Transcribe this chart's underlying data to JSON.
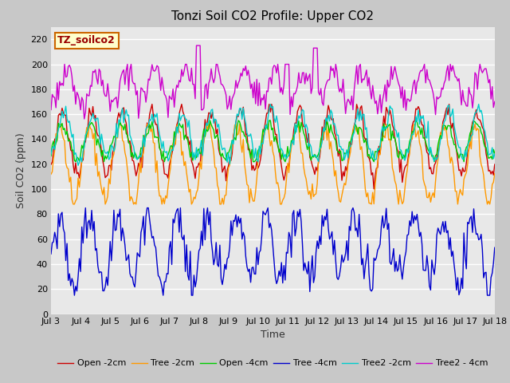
{
  "title": "Tonzi Soil CO2 Profile: Upper CO2",
  "ylabel": "Soil CO2 (ppm)",
  "xlabel": "Time",
  "dataset_label": "TZ_soilco2",
  "xlim": [
    0,
    360
  ],
  "ylim": [
    0,
    230
  ],
  "yticks": [
    0,
    20,
    40,
    60,
    80,
    100,
    120,
    140,
    160,
    180,
    200,
    220
  ],
  "xtick_labels": [
    "Jul 3",
    "Jul 4",
    "Jul 5",
    "Jul 6",
    "Jul 7",
    "Jul 8",
    "Jul 9",
    "Jul 10",
    "Jul 11",
    "Jul 12",
    "Jul 13",
    "Jul 14",
    "Jul 15",
    "Jul 16",
    "Jul 17",
    "Jul 18"
  ],
  "xtick_positions": [
    0,
    24,
    48,
    72,
    96,
    120,
    144,
    168,
    192,
    216,
    240,
    264,
    288,
    312,
    336,
    360
  ],
  "fig_bg_color": "#c8c8c8",
  "plot_bg_color": "#e8e8e8",
  "series": [
    {
      "label": "Open -2cm",
      "color": "#cc0000"
    },
    {
      "label": "Tree -2cm",
      "color": "#ff9900"
    },
    {
      "label": "Open -4cm",
      "color": "#00cc00"
    },
    {
      "label": "Tree -4cm",
      "color": "#0000cc"
    },
    {
      "label": "Tree2 -2cm",
      "color": "#00cccc"
    },
    {
      "label": "Tree2 - 4cm",
      "color": "#cc00cc"
    }
  ],
  "title_fontsize": 11,
  "label_fontsize": 9,
  "tick_fontsize": 8,
  "legend_fontsize": 8,
  "linewidth": 1.0,
  "grid_color": "#ffffff",
  "dataset_label_color": "#990000",
  "dataset_label_bg": "#ffffcc",
  "dataset_label_edge": "#cc6600"
}
